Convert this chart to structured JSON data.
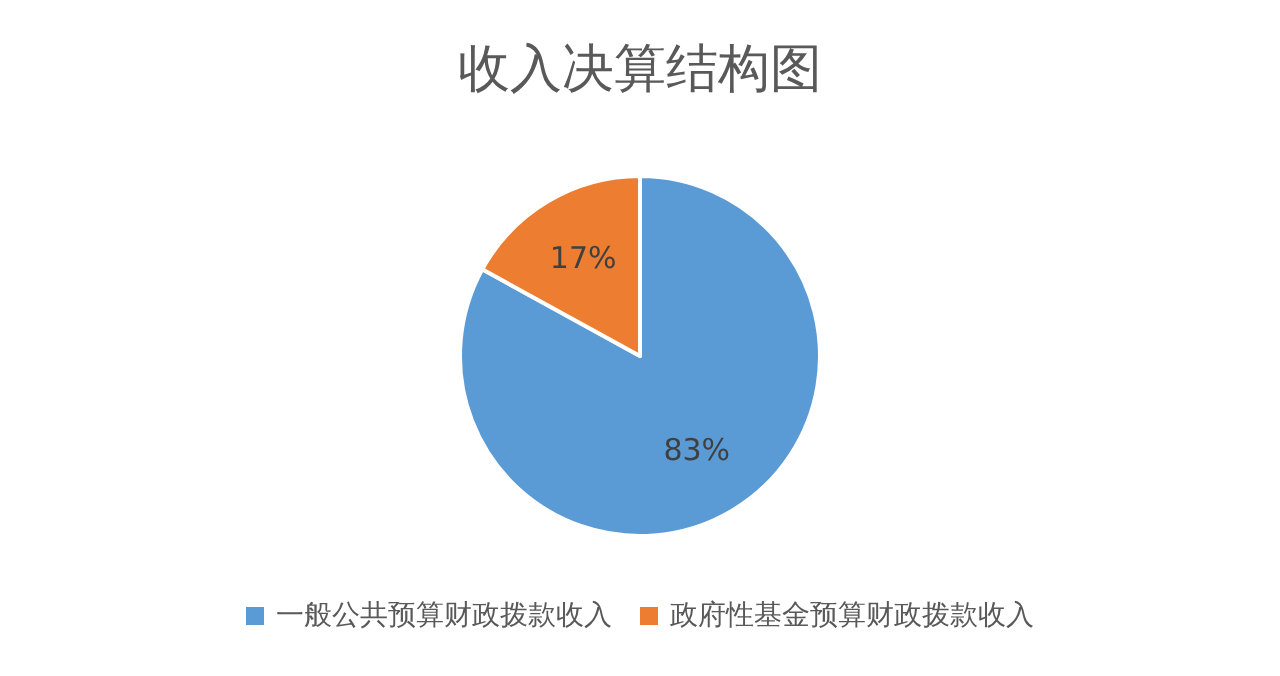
{
  "chart_data": {
    "type": "pie",
    "title": "收入决算结构图",
    "categories": [
      "一般公共预算财政拨款收入",
      "政府性基金预算财政拨款收入"
    ],
    "values": [
      83,
      17
    ],
    "colors": [
      "#5b9bd5",
      "#ed7d31"
    ],
    "value_labels": [
      "83%",
      "17%"
    ],
    "legend": "bottom"
  }
}
